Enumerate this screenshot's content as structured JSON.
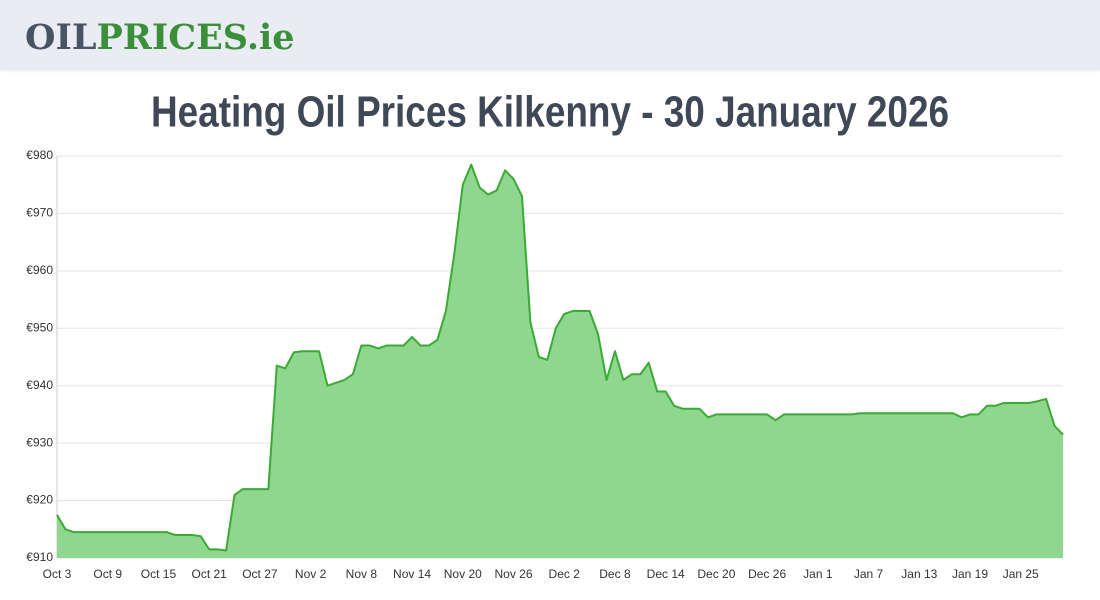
{
  "header": {
    "logo_part1": "OIL",
    "logo_part2": "PRICES.ie"
  },
  "chart_data": {
    "type": "area",
    "title": "Heating Oil Prices Kilkenny - 30 January 2026",
    "color": "#3aaa35",
    "fill": "#8fd68e",
    "grid": true,
    "categories": [
      "Oct 3",
      null,
      null,
      null,
      null,
      null,
      "Oct 9",
      null,
      null,
      null,
      null,
      null,
      "Oct 15",
      null,
      null,
      null,
      null,
      null,
      "Oct 21",
      null,
      null,
      null,
      null,
      null,
      "Oct 27",
      null,
      null,
      null,
      null,
      null,
      "Nov 2",
      null,
      null,
      null,
      null,
      null,
      "Nov 8",
      null,
      null,
      null,
      null,
      null,
      "Nov 14",
      null,
      null,
      null,
      null,
      null,
      "Nov 20",
      null,
      null,
      null,
      null,
      null,
      "Nov 26",
      null,
      null,
      null,
      null,
      null,
      "Dec 2",
      null,
      null,
      null,
      null,
      null,
      "Dec 8",
      null,
      null,
      null,
      null,
      null,
      "Dec 14",
      null,
      null,
      null,
      null,
      null,
      "Dec 20",
      null,
      null,
      null,
      null,
      null,
      "Dec 26",
      null,
      null,
      null,
      null,
      null,
      "Jan 1",
      null,
      null,
      null,
      null,
      null,
      "Jan 7",
      null,
      null,
      null,
      null,
      null,
      "Jan 13",
      null,
      null,
      null,
      null,
      null,
      "Jan 19",
      null,
      null,
      null,
      null,
      null,
      "Jan 25",
      null,
      null,
      null,
      null,
      null
    ],
    "values": [
      917.5,
      915,
      914.5,
      914.5,
      914.5,
      914.5,
      914.5,
      914.5,
      914.5,
      914.5,
      914.5,
      914.5,
      914.5,
      914.5,
      914,
      914,
      914,
      913.8,
      911.5,
      911.5,
      911.3,
      921,
      922,
      922,
      922,
      922,
      943.5,
      943,
      945.8,
      946,
      946,
      946,
      940,
      940.5,
      941,
      942,
      947,
      947,
      946.5,
      947,
      947,
      947,
      948.5,
      947,
      947,
      948,
      953,
      963,
      975,
      978.5,
      974.5,
      973.3,
      974,
      977.5,
      976,
      973,
      951,
      945,
      944.5,
      950,
      952.5,
      953,
      953,
      953,
      949,
      941,
      946,
      941,
      942,
      942,
      944,
      939,
      939,
      936.5,
      936,
      936,
      936,
      934.5,
      935,
      935,
      935,
      935,
      935,
      935,
      935,
      934,
      935,
      935,
      935,
      935,
      935,
      935,
      935,
      935,
      935,
      935.2,
      935.2,
      935.2,
      935.2,
      935.2,
      935.2,
      935.2,
      935.2,
      935.2,
      935.2,
      935.2,
      935.2,
      934.5,
      935,
      935,
      936.5,
      936.5,
      937,
      937,
      937,
      937,
      937.3,
      937.7,
      933,
      931.5
    ],
    "ylim": [
      910,
      980
    ],
    "yticks": [
      {
        "value": 910,
        "label": "€910"
      },
      {
        "value": 920,
        "label": "€920"
      },
      {
        "value": 930,
        "label": "€930"
      },
      {
        "value": 940,
        "label": "€940"
      },
      {
        "value": 950,
        "label": "€950"
      },
      {
        "value": 960,
        "label": "€960"
      },
      {
        "value": 970,
        "label": "€970"
      },
      {
        "value": 980,
        "label": "€980"
      }
    ]
  }
}
